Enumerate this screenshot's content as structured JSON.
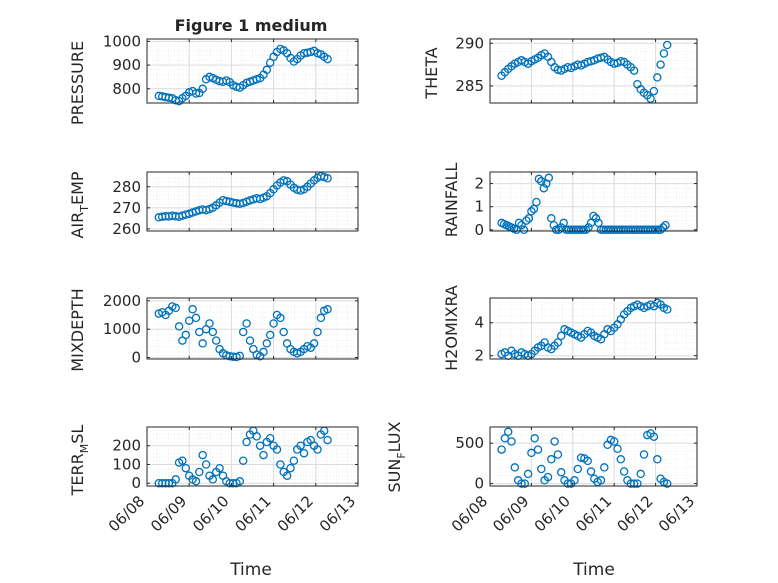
{
  "chart_data": [
    {
      "type": "scatter",
      "title": "Figure 1 medium",
      "ylabel": "PRESSURE",
      "ylim": [
        740,
        1010
      ],
      "yticks": [
        800,
        900,
        1000
      ],
      "xlim": [
        0,
        5
      ],
      "grid": "on",
      "x": [
        0.28,
        0.36,
        0.44,
        0.52,
        0.6,
        0.68,
        0.76,
        0.84,
        0.92,
        1.0,
        1.08,
        1.16,
        1.24,
        1.32,
        1.4,
        1.48,
        1.56,
        1.64,
        1.72,
        1.8,
        1.88,
        1.96,
        2.04,
        2.12,
        2.2,
        2.28,
        2.36,
        2.44,
        2.52,
        2.6,
        2.68,
        2.76,
        2.84,
        2.92,
        3.0,
        3.08,
        3.16,
        3.24,
        3.32,
        3.4,
        3.48,
        3.56,
        3.64,
        3.72,
        3.8,
        3.88,
        3.96,
        4.04,
        4.12,
        4.2,
        4.28
      ],
      "y": [
        770,
        768,
        765,
        762,
        760,
        752,
        748,
        760,
        770,
        785,
        790,
        780,
        782,
        800,
        840,
        850,
        845,
        838,
        832,
        830,
        835,
        828,
        815,
        808,
        805,
        815,
        825,
        830,
        835,
        840,
        845,
        860,
        880,
        910,
        935,
        955,
        968,
        962,
        950,
        930,
        915,
        925,
        940,
        950,
        952,
        955,
        960,
        950,
        945,
        935,
        925
      ]
    },
    {
      "type": "scatter",
      "ylabel": "THETA",
      "ylim": [
        283,
        290.5
      ],
      "yticks": [
        285,
        290
      ],
      "xlim": [
        0,
        5
      ],
      "grid": "on",
      "x": [
        0.28,
        0.36,
        0.44,
        0.52,
        0.6,
        0.68,
        0.76,
        0.84,
        0.92,
        1.0,
        1.08,
        1.16,
        1.24,
        1.32,
        1.4,
        1.48,
        1.56,
        1.64,
        1.72,
        1.8,
        1.88,
        1.96,
        2.04,
        2.12,
        2.2,
        2.28,
        2.36,
        2.44,
        2.52,
        2.6,
        2.68,
        2.76,
        2.84,
        2.92,
        3.0,
        3.08,
        3.16,
        3.24,
        3.32,
        3.4,
        3.48,
        3.56,
        3.64,
        3.72,
        3.8,
        3.88,
        3.96,
        4.04,
        4.12,
        4.2,
        4.28
      ],
      "y": [
        286.2,
        286.6,
        287.0,
        287.3,
        287.6,
        287.8,
        288.0,
        287.8,
        287.6,
        287.9,
        288.1,
        288.3,
        288.6,
        288.8,
        288.4,
        287.8,
        287.2,
        286.9,
        286.8,
        287.0,
        287.2,
        287.1,
        287.3,
        287.5,
        287.4,
        287.6,
        287.8,
        287.9,
        288.0,
        288.2,
        288.3,
        288.4,
        288.1,
        287.8,
        287.6,
        287.7,
        287.9,
        287.8,
        287.5,
        287.2,
        286.8,
        285.2,
        284.6,
        284.2,
        283.9,
        283.5,
        284.4,
        286.0,
        287.5,
        288.8,
        289.8
      ]
    },
    {
      "type": "scatter",
      "ylabel": "AIR_TEMP",
      "ylim": [
        259,
        287
      ],
      "yticks": [
        260,
        270,
        280
      ],
      "xlim": [
        0,
        5
      ],
      "grid": "on",
      "x": [
        0.28,
        0.36,
        0.44,
        0.52,
        0.6,
        0.68,
        0.76,
        0.84,
        0.92,
        1.0,
        1.08,
        1.16,
        1.24,
        1.32,
        1.4,
        1.48,
        1.56,
        1.64,
        1.72,
        1.8,
        1.88,
        1.96,
        2.04,
        2.12,
        2.2,
        2.28,
        2.36,
        2.44,
        2.52,
        2.6,
        2.68,
        2.76,
        2.84,
        2.92,
        3.0,
        3.08,
        3.16,
        3.24,
        3.32,
        3.4,
        3.48,
        3.56,
        3.64,
        3.72,
        3.8,
        3.88,
        3.96,
        4.04,
        4.12,
        4.2,
        4.28
      ],
      "y": [
        265.5,
        265.8,
        266.0,
        265.9,
        266.2,
        266.0,
        265.8,
        266.3,
        266.8,
        267.2,
        267.8,
        268.3,
        268.8,
        269.2,
        268.9,
        269.4,
        270.0,
        271.2,
        272.5,
        273.6,
        273.2,
        272.9,
        272.5,
        272.2,
        271.9,
        272.3,
        272.9,
        273.5,
        274.0,
        274.5,
        274.2,
        274.8,
        275.5,
        277.0,
        278.8,
        280.6,
        282.0,
        283.0,
        282.6,
        281.0,
        279.5,
        278.6,
        278.2,
        278.8,
        280.0,
        281.5,
        283.0,
        284.2,
        285.0,
        284.6,
        284.0
      ]
    },
    {
      "type": "scatter",
      "ylabel": "RAINFALL",
      "ylim": [
        -0.05,
        2.5
      ],
      "yticks": [
        0,
        1,
        2
      ],
      "xlim": [
        0,
        5
      ],
      "grid": "on",
      "x": [
        0.28,
        0.34,
        0.4,
        0.46,
        0.52,
        0.58,
        0.64,
        0.7,
        0.76,
        0.82,
        0.88,
        0.94,
        1.0,
        1.06,
        1.12,
        1.18,
        1.24,
        1.3,
        1.36,
        1.42,
        1.48,
        1.54,
        1.6,
        1.66,
        1.72,
        1.78,
        1.84,
        1.9,
        1.96,
        2.02,
        2.08,
        2.14,
        2.2,
        2.26,
        2.32,
        2.38,
        2.44,
        2.5,
        2.56,
        2.62,
        2.68,
        2.74,
        2.8,
        2.86,
        2.92,
        2.98,
        3.04,
        3.1,
        3.16,
        3.22,
        3.28,
        3.34,
        3.4,
        3.46,
        3.52,
        3.58,
        3.64,
        3.7,
        3.76,
        3.82,
        3.88,
        3.94,
        4.0,
        4.06,
        4.12,
        4.18,
        4.24
      ],
      "y": [
        0.3,
        0.25,
        0.2,
        0.15,
        0.1,
        0.05,
        0.0,
        0.3,
        0.2,
        0.0,
        0.4,
        0.5,
        0.8,
        0.9,
        1.2,
        2.2,
        2.1,
        1.8,
        2.0,
        2.25,
        0.5,
        0.2,
        0.0,
        0.0,
        0.1,
        0.3,
        0.0,
        0.0,
        0.0,
        0.0,
        0.0,
        0.0,
        0.0,
        0.0,
        0.0,
        0.1,
        0.3,
        0.6,
        0.5,
        0.3,
        0.0,
        0.0,
        0.0,
        0.0,
        0.0,
        0.0,
        0.0,
        0.0,
        0.0,
        0.0,
        0.0,
        0.0,
        0.0,
        0.0,
        0.0,
        0.0,
        0.0,
        0.0,
        0.0,
        0.0,
        0.0,
        0.0,
        0.0,
        0.0,
        0.0,
        0.1,
        0.2
      ]
    },
    {
      "type": "scatter",
      "ylabel": "MIXDEPTH",
      "ylim": [
        -50,
        2100
      ],
      "yticks": [
        0,
        1000,
        2000
      ],
      "xlim": [
        0,
        5
      ],
      "grid": "on",
      "x": [
        0.28,
        0.36,
        0.44,
        0.52,
        0.6,
        0.68,
        0.76,
        0.84,
        0.92,
        1.0,
        1.08,
        1.16,
        1.24,
        1.32,
        1.4,
        1.48,
        1.56,
        1.64,
        1.72,
        1.8,
        1.88,
        1.96,
        2.04,
        2.12,
        2.2,
        2.28,
        2.36,
        2.44,
        2.52,
        2.6,
        2.68,
        2.76,
        2.84,
        2.92,
        3.0,
        3.08,
        3.16,
        3.24,
        3.32,
        3.4,
        3.48,
        3.56,
        3.64,
        3.72,
        3.8,
        3.88,
        3.96,
        4.04,
        4.12,
        4.2,
        4.28
      ],
      "y": [
        1550,
        1600,
        1500,
        1650,
        1800,
        1750,
        1100,
        600,
        800,
        1300,
        1700,
        1400,
        900,
        500,
        1000,
        1200,
        900,
        600,
        300,
        150,
        80,
        50,
        30,
        20,
        60,
        900,
        1200,
        600,
        300,
        100,
        50,
        200,
        500,
        800,
        1200,
        1500,
        1400,
        900,
        500,
        300,
        200,
        150,
        200,
        300,
        400,
        350,
        500,
        900,
        1400,
        1650,
        1700
      ]
    },
    {
      "type": "scatter",
      "ylabel": "H2OMIXRA",
      "ylim": [
        1.8,
        5.5
      ],
      "yticks": [
        2,
        4
      ],
      "xlim": [
        0,
        5
      ],
      "grid": "on",
      "x": [
        0.28,
        0.36,
        0.44,
        0.52,
        0.6,
        0.68,
        0.76,
        0.84,
        0.92,
        1.0,
        1.08,
        1.16,
        1.24,
        1.32,
        1.4,
        1.48,
        1.56,
        1.64,
        1.72,
        1.8,
        1.88,
        1.96,
        2.04,
        2.12,
        2.2,
        2.28,
        2.36,
        2.44,
        2.52,
        2.6,
        2.68,
        2.76,
        2.84,
        2.92,
        3.0,
        3.08,
        3.16,
        3.24,
        3.32,
        3.4,
        3.48,
        3.56,
        3.64,
        3.72,
        3.8,
        3.88,
        3.96,
        4.04,
        4.12,
        4.2,
        4.28
      ],
      "y": [
        2.1,
        2.2,
        2.0,
        2.3,
        2.1,
        2.0,
        2.2,
        2.1,
        2.0,
        2.1,
        2.3,
        2.5,
        2.6,
        2.8,
        2.5,
        2.4,
        2.6,
        2.8,
        3.2,
        3.6,
        3.5,
        3.4,
        3.3,
        3.2,
        3.1,
        3.3,
        3.5,
        3.4,
        3.2,
        3.1,
        3.0,
        3.3,
        3.6,
        3.5,
        3.7,
        3.9,
        4.2,
        4.5,
        4.7,
        4.9,
        5.0,
        5.1,
        5.0,
        4.9,
        5.0,
        5.1,
        5.0,
        5.2,
        5.1,
        4.9,
        4.8
      ]
    },
    {
      "type": "scatter",
      "ylabel": "TERR_MSL",
      "ylim": [
        -15,
        300
      ],
      "yticks": [
        0,
        100,
        200
      ],
      "xlim": [
        0,
        5
      ],
      "grid": "on",
      "x": [
        0.28,
        0.36,
        0.44,
        0.52,
        0.6,
        0.68,
        0.76,
        0.84,
        0.92,
        1.0,
        1.08,
        1.16,
        1.24,
        1.32,
        1.4,
        1.48,
        1.56,
        1.64,
        1.72,
        1.8,
        1.88,
        1.96,
        2.04,
        2.12,
        2.2,
        2.28,
        2.36,
        2.44,
        2.52,
        2.6,
        2.68,
        2.76,
        2.84,
        2.92,
        3.0,
        3.08,
        3.16,
        3.24,
        3.32,
        3.4,
        3.48,
        3.56,
        3.64,
        3.72,
        3.8,
        3.88,
        3.96,
        4.04,
        4.12,
        4.2,
        4.28
      ],
      "y": [
        0,
        0,
        0,
        0,
        0,
        20,
        110,
        120,
        80,
        40,
        20,
        10,
        60,
        150,
        100,
        40,
        20,
        60,
        80,
        40,
        10,
        0,
        0,
        0,
        10,
        120,
        220,
        260,
        280,
        250,
        200,
        150,
        220,
        240,
        200,
        180,
        100,
        60,
        40,
        80,
        120,
        180,
        200,
        160,
        220,
        230,
        200,
        180,
        260,
        280,
        230
      ]
    },
    {
      "type": "scatter",
      "ylabel": "SUN_FLUX",
      "ylim": [
        -30,
        700
      ],
      "yticks": [
        0,
        500
      ],
      "xlim": [
        0,
        5
      ],
      "xticks": [
        "06/08",
        "06/09",
        "06/10",
        "06/11",
        "06/12",
        "06/13"
      ],
      "xlabel": "Time",
      "grid": "on",
      "x": [
        0.28,
        0.36,
        0.44,
        0.52,
        0.6,
        0.68,
        0.76,
        0.84,
        0.92,
        1.0,
        1.08,
        1.16,
        1.24,
        1.32,
        1.4,
        1.48,
        1.56,
        1.64,
        1.72,
        1.8,
        1.88,
        1.96,
        2.04,
        2.12,
        2.2,
        2.28,
        2.36,
        2.44,
        2.52,
        2.6,
        2.68,
        2.76,
        2.84,
        2.92,
        3.0,
        3.08,
        3.16,
        3.24,
        3.32,
        3.4,
        3.48,
        3.56,
        3.64,
        3.72,
        3.8,
        3.88,
        3.96,
        4.04,
        4.12,
        4.2,
        4.28
      ],
      "y": [
        420,
        560,
        640,
        520,
        200,
        40,
        0,
        0,
        120,
        380,
        560,
        420,
        180,
        40,
        80,
        300,
        520,
        360,
        140,
        40,
        0,
        0,
        40,
        180,
        320,
        310,
        280,
        150,
        60,
        20,
        40,
        200,
        480,
        540,
        520,
        430,
        300,
        150,
        40,
        0,
        0,
        0,
        120,
        360,
        600,
        620,
        580,
        300,
        60,
        20,
        0
      ]
    }
  ],
  "x_axis": {
    "ticks": [
      "06/08",
      "06/09",
      "06/10",
      "06/11",
      "06/12",
      "06/13"
    ],
    "label": "Time"
  },
  "labels": {
    "title": "Figure 1 medium",
    "left": [
      "PRESSURE",
      "AIR",
      "MIXDEPTH",
      "TERR"
    ],
    "left_sub": [
      "",
      "T",
      "",
      "M"
    ],
    "left_tail": [
      "",
      "EMP",
      "",
      "SL"
    ],
    "right": [
      "THETA",
      "RAINFALL",
      "H2OMIXRA",
      "SUN"
    ],
    "right_sub": [
      "",
      "",
      "",
      "F"
    ],
    "right_tail": [
      "",
      "",
      "",
      "LUX"
    ]
  },
  "colors": {
    "marker": "#0072BD",
    "axis": "#262626",
    "grid": "#dcdcdc",
    "minor_grid": "#eeeeee"
  }
}
